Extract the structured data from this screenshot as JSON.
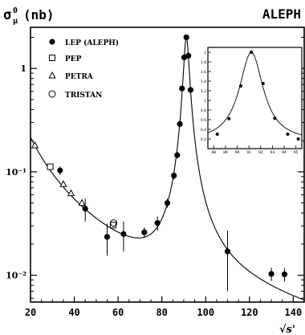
{
  "chart_data": {
    "type": "scatter",
    "title_main": "σ",
    "title_sup": "0",
    "title_sub": "μ",
    "title_units": "(nb)",
    "experiment_label": "ALEPH",
    "xlabel": "√s'",
    "xlim": [
      20,
      145
    ],
    "ylim": [
      0.0055,
      2.5
    ],
    "yscale": "log",
    "x_ticks": [
      "20",
      "40",
      "60",
      "80",
      "100",
      "120",
      "140"
    ],
    "y_ticks": [
      "10⁻²",
      "10⁻¹",
      "1"
    ],
    "series": [
      {
        "name": "LEP (ALEPH)",
        "marker": "filled-circle",
        "points": [
          {
            "x": 33.5,
            "y": 0.103,
            "yerr": 0.01
          },
          {
            "x": 45,
            "y": 0.044,
            "yerr": 0.011
          },
          {
            "x": 55,
            "y": 0.0235,
            "yerr": 0.008
          },
          {
            "x": 62.5,
            "y": 0.025,
            "yerr": 0.008
          },
          {
            "x": 72,
            "y": 0.026,
            "yerr": 0.003
          },
          {
            "x": 78,
            "y": 0.032,
            "yerr": 0.005
          },
          {
            "x": 82.5,
            "y": 0.05,
            "yerr": 0.005
          },
          {
            "x": 85.5,
            "y": 0.092,
            "yerr": 0.008
          },
          {
            "x": 87,
            "y": 0.145,
            "yerr": 0.01
          },
          {
            "x": 88.2,
            "y": 0.29,
            "yerr": 0.02
          },
          {
            "x": 89.2,
            "y": 0.64,
            "yerr": 0.03
          },
          {
            "x": 90.2,
            "y": 1.28,
            "yerr": 0.05
          },
          {
            "x": 91.2,
            "y": 2.0,
            "yerr": 0.05
          },
          {
            "x": 92.1,
            "y": 1.33,
            "yerr": 0.05
          },
          {
            "x": 93.1,
            "y": 0.62,
            "yerr": 0.03
          },
          {
            "x": 110,
            "y": 0.017,
            "yerr": 0.01
          },
          {
            "x": 130,
            "y": 0.0103,
            "yerr": 0.0015
          },
          {
            "x": 136,
            "y": 0.0102,
            "yerr": 0.0015
          }
        ]
      },
      {
        "name": "PEP",
        "marker": "open-square",
        "points": [
          {
            "x": 29,
            "y": 0.112
          },
          {
            "x": 57.7,
            "y": 0.0305
          }
        ]
      },
      {
        "name": "PETRA",
        "marker": "open-triangle",
        "points": [
          {
            "x": 22,
            "y": 0.18
          },
          {
            "x": 35,
            "y": 0.076
          },
          {
            "x": 38.5,
            "y": 0.062
          },
          {
            "x": 43.5,
            "y": 0.05
          }
        ]
      },
      {
        "name": "TRISTAN",
        "marker": "open-circle",
        "points": [
          {
            "x": 58,
            "y": 0.032
          }
        ]
      }
    ],
    "inset": {
      "xlim": [
        87.5,
        95.5
      ],
      "ylim": [
        0,
        2.1
      ],
      "y_ticks": [
        "0.2",
        "0.4",
        "0.6",
        "0.8",
        "1",
        "1.2",
        "1.4",
        "1.6",
        "1.8",
        "2"
      ],
      "x_ticks": [
        "88",
        "89",
        "90",
        "91",
        "92",
        "93",
        "94",
        "95"
      ],
      "points": [
        {
          "x": 88.3,
          "y": 0.3
        },
        {
          "x": 89.3,
          "y": 0.62
        },
        {
          "x": 90.3,
          "y": 1.3
        },
        {
          "x": 91.2,
          "y": 2.0
        },
        {
          "x": 92.2,
          "y": 1.35
        },
        {
          "x": 93.2,
          "y": 0.63
        },
        {
          "x": 94.3,
          "y": 0.3
        },
        {
          "x": 95.2,
          "y": 0.2
        }
      ]
    }
  }
}
